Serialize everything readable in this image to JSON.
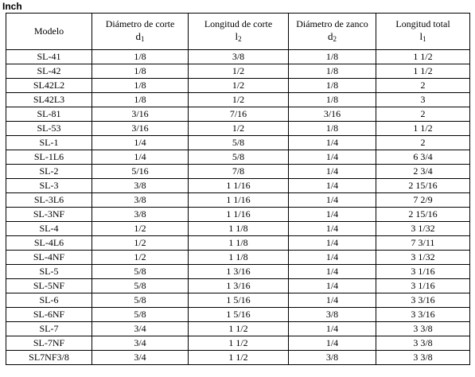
{
  "unit_title": "Inch",
  "header": {
    "model": "Modelo",
    "d1_label": "Diámetro de corte",
    "d1_symbol": "d",
    "d1_sub": "1",
    "l2_label": "Longitud de corte",
    "l2_symbol": "l",
    "l2_sub": "2",
    "d2_label": "Diámetro de zanco",
    "d2_symbol": "d",
    "d2_sub": "2",
    "l1_label": "Longitud total",
    "l1_symbol": "l",
    "l1_sub": "1"
  },
  "rows": [
    [
      "SL-41",
      "1/8",
      "3/8",
      "1/8",
      "1 1/2"
    ],
    [
      "SL-42",
      "1/8",
      "1/2",
      "1/8",
      "1 1/2"
    ],
    [
      "SL42L2",
      "1/8",
      "1/2",
      "1/8",
      "2"
    ],
    [
      "SL42L3",
      "1/8",
      "1/2",
      "1/8",
      "3"
    ],
    [
      "SL-81",
      "3/16",
      "7/16",
      "3/16",
      "2"
    ],
    [
      "SL-53",
      "3/16",
      "1/2",
      "1/8",
      "1 1/2"
    ],
    [
      "SL-1",
      "1/4",
      "5/8",
      "1/4",
      "2"
    ],
    [
      "SL-1L6",
      "1/4",
      "5/8",
      "1/4",
      "6 3/4"
    ],
    [
      "SL-2",
      "5/16",
      "7/8",
      "1/4",
      "2 3/4"
    ],
    [
      "SL-3",
      "3/8",
      "1 1/16",
      "1/4",
      "2 15/16"
    ],
    [
      "SL-3L6",
      "3/8",
      "1 1/16",
      "1/4",
      "7 2/9"
    ],
    [
      "SL-3NF",
      "3/8",
      "1 1/16",
      "1/4",
      "2 15/16"
    ],
    [
      "SL-4",
      "1/2",
      "1 1/8",
      "1/4",
      "3 1/32"
    ],
    [
      "SL-4L6",
      "1/2",
      "1 1/8",
      "1/4",
      "7 3/11"
    ],
    [
      "SL-4NF",
      "1/2",
      "1 1/8",
      "1/4",
      "3 1/32"
    ],
    [
      "SL-5",
      "5/8",
      "1 3/16",
      "1/4",
      "3 1/16"
    ],
    [
      "SL-5NF",
      "5/8",
      "1 3/16",
      "1/4",
      "3 1/16"
    ],
    [
      "SL-6",
      "5/8",
      "1 5/16",
      "1/4",
      "3 3/16"
    ],
    [
      "SL-6NF",
      "5/8",
      "1 5/16",
      "3/8",
      "3 3/16"
    ],
    [
      "SL-7",
      "3/4",
      "1 1/2",
      "1/4",
      "3 3/8"
    ],
    [
      "SL-7NF",
      "3/4",
      "1 1/2",
      "1/4",
      "3 3/8"
    ],
    [
      "SL7NF3/8",
      "3/4",
      "1 1/2",
      "3/8",
      "3 3/8"
    ]
  ]
}
